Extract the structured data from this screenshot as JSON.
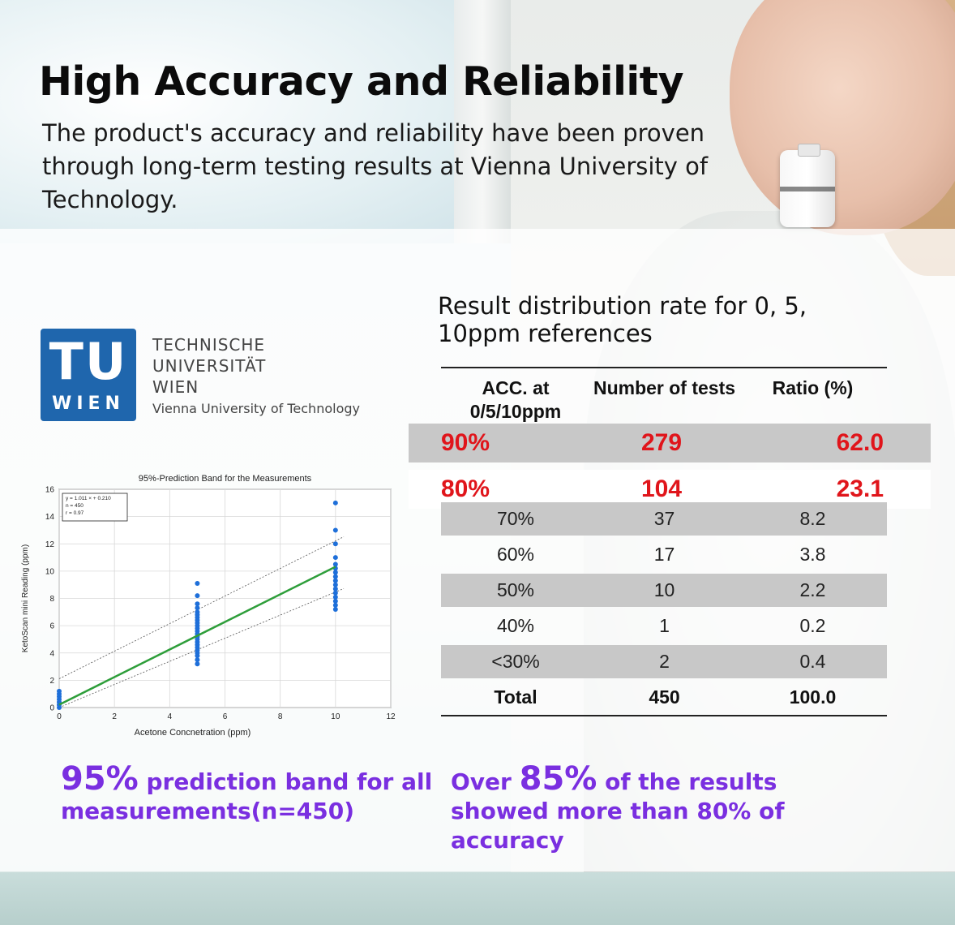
{
  "title": "High Accuracy and Reliability",
  "subtitle": "The product's accuracy and reliability have been proven through long-term testing results at Vienna University of Technology.",
  "university": {
    "logo_top": "TU",
    "logo_bottom": "WIEN",
    "name_lines": [
      "TECHNISCHE",
      "UNIVERSITÄT",
      "WIEN"
    ],
    "english_name": "Vienna University of Technology",
    "logo_color": "#1f66ad"
  },
  "table": {
    "title": "Result distribution rate for 0, 5, 10ppm references",
    "headers": [
      "ACC. at 0/5/10ppm",
      "Number of tests",
      "Ratio (%)"
    ],
    "highlight_rows": [
      {
        "acc": "90%",
        "tests": "279",
        "ratio": "62.0"
      },
      {
        "acc": "80%",
        "tests": "104",
        "ratio": "23.1"
      }
    ],
    "rows": [
      {
        "acc": "70%",
        "tests": "37",
        "ratio": "8.2"
      },
      {
        "acc": "60%",
        "tests": "17",
        "ratio": "3.8"
      },
      {
        "acc": "50%",
        "tests": "10",
        "ratio": "2.2"
      },
      {
        "acc": "40%",
        "tests": "1",
        "ratio": "0.2"
      },
      {
        "acc": "<30%",
        "tests": "2",
        "ratio": "0.4"
      }
    ],
    "total": {
      "acc": "Total",
      "tests": "450",
      "ratio": "100.0"
    },
    "highlight_color": "#e0151b"
  },
  "captions": {
    "left_big": "95%",
    "left_rest": " prediction band for all measurements(n=450)",
    "right_pre": "Over ",
    "right_big": "85%",
    "right_rest": " of the results showed more than 80% of accuracy",
    "color": "#7a2fe0"
  },
  "chart_data": {
    "type": "scatter",
    "title": "95%-Prediction Band for the Measurements",
    "xlabel": "Acetone Concnetration (ppm)",
    "ylabel": "KetoScan mini Reading (ppm)",
    "xlim": [
      0,
      12
    ],
    "ylim": [
      0,
      16
    ],
    "xticks": [
      0,
      2,
      4,
      6,
      8,
      10,
      12
    ],
    "yticks": [
      0,
      2,
      4,
      6,
      8,
      10,
      12,
      14,
      16
    ],
    "grid": true,
    "annotation": [
      "y = 1.011 × + 0.210",
      "n = 450",
      "r = 0.97"
    ],
    "fit": {
      "slope": 1.011,
      "intercept": 0.21
    },
    "band_offset": 1.9,
    "series": [
      {
        "points": [
          [
            0,
            0.0
          ],
          [
            0,
            0.2
          ],
          [
            0,
            0.4
          ],
          [
            0,
            0.6
          ],
          [
            0,
            0.8
          ],
          [
            0,
            1.0
          ],
          [
            0,
            1.2
          ],
          [
            5,
            3.2
          ],
          [
            5,
            3.5
          ],
          [
            5,
            3.8
          ],
          [
            5,
            4.0
          ],
          [
            5,
            4.2
          ],
          [
            5,
            4.4
          ],
          [
            5,
            4.6
          ],
          [
            5,
            4.8
          ],
          [
            5,
            5.0
          ],
          [
            5,
            5.2
          ],
          [
            5,
            5.4
          ],
          [
            5,
            5.6
          ],
          [
            5,
            5.8
          ],
          [
            5,
            6.0
          ],
          [
            5,
            6.2
          ],
          [
            5,
            6.4
          ],
          [
            5,
            6.6
          ],
          [
            5,
            6.8
          ],
          [
            5,
            7.0
          ],
          [
            5,
            7.3
          ],
          [
            5,
            7.6
          ],
          [
            5,
            8.2
          ],
          [
            5,
            9.1
          ],
          [
            10,
            7.2
          ],
          [
            10,
            7.5
          ],
          [
            10,
            7.8
          ],
          [
            10,
            8.1
          ],
          [
            10,
            8.4
          ],
          [
            10,
            8.7
          ],
          [
            10,
            9.0
          ],
          [
            10,
            9.3
          ],
          [
            10,
            9.6
          ],
          [
            10,
            9.9
          ],
          [
            10,
            10.2
          ],
          [
            10,
            10.5
          ],
          [
            10,
            11.0
          ],
          [
            10,
            12.0
          ],
          [
            10,
            13.0
          ],
          [
            10,
            15.0
          ]
        ],
        "color": "#1e6fd9"
      }
    ],
    "fit_color": "#2e9e3a"
  }
}
